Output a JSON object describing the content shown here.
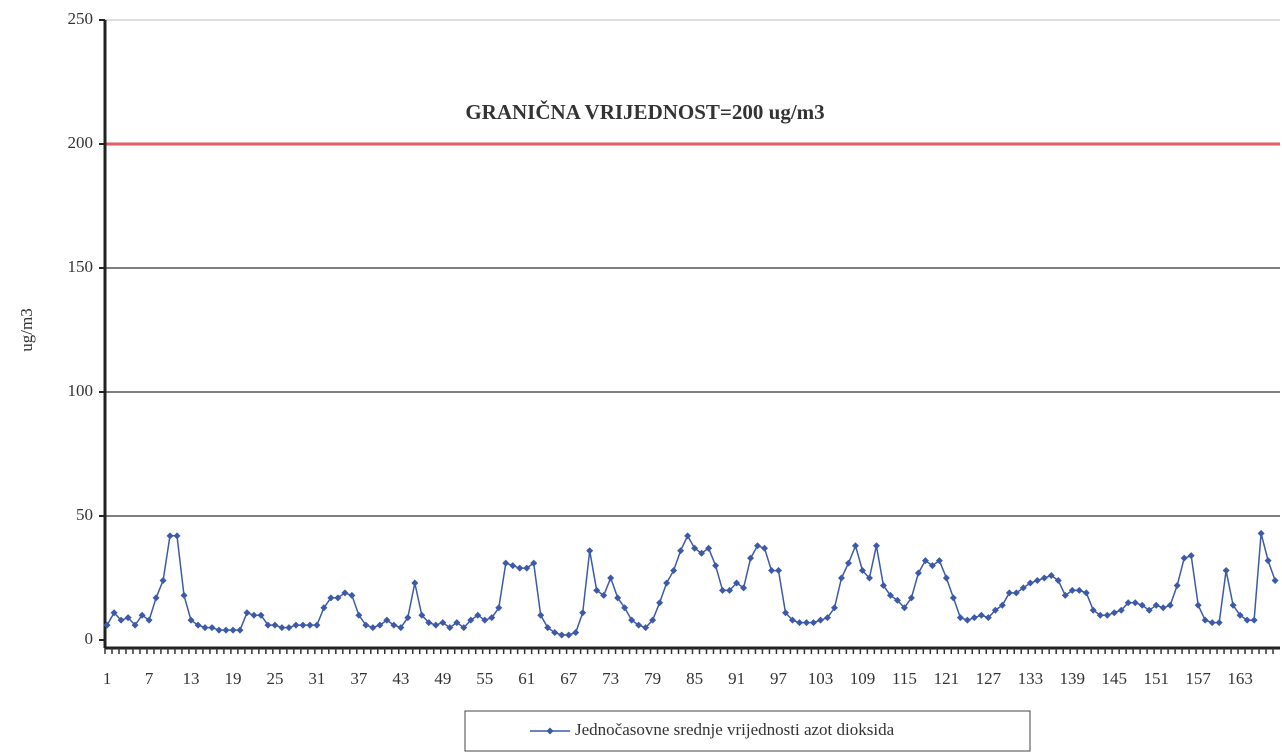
{
  "chart_data": {
    "type": "line",
    "y_label": "ug/m3",
    "categories": [
      1,
      null,
      null,
      null,
      null,
      null,
      7,
      null,
      null,
      null,
      null,
      null,
      13,
      null,
      null,
      null,
      null,
      null,
      19,
      null,
      null,
      null,
      null,
      null,
      25,
      null,
      null,
      null,
      null,
      null,
      31,
      null,
      null,
      null,
      null,
      null,
      37,
      null,
      null,
      null,
      null,
      null,
      43,
      null,
      null,
      null,
      null,
      null,
      49,
      null,
      null,
      null,
      null,
      null,
      55,
      null,
      null,
      null,
      null,
      null,
      61,
      null,
      null,
      null,
      null,
      null,
      67,
      null,
      null,
      null,
      null,
      null,
      73,
      null,
      null,
      null,
      null,
      null,
      79,
      null,
      null,
      null,
      null,
      null,
      85,
      null,
      null,
      null,
      null,
      null,
      91,
      null,
      null,
      null,
      null,
      null,
      97,
      null,
      null,
      null,
      null,
      null,
      103,
      null,
      null,
      null,
      null,
      null,
      109,
      null,
      null,
      null,
      null,
      null,
      115,
      null,
      null,
      null,
      null,
      null,
      121,
      null,
      null,
      null,
      null,
      null,
      127,
      null,
      null,
      null,
      null,
      null,
      133,
      null,
      null,
      null,
      null,
      null,
      139,
      null,
      null,
      null,
      null,
      null,
      145,
      null,
      null,
      null,
      null,
      null,
      151,
      null,
      null,
      null,
      null,
      null,
      157,
      null,
      null,
      null,
      null,
      null,
      163,
      null,
      null,
      null,
      null,
      null
    ],
    "series": [
      {
        "name": "Jednočasovne srednje vrijednosti azot dioksida",
        "color": "#3c5aa8",
        "values": [
          6,
          11,
          8,
          9,
          6,
          10,
          8,
          17,
          24,
          42,
          42,
          18,
          8,
          6,
          5,
          5,
          4,
          4,
          4,
          4,
          11,
          10,
          10,
          6,
          6,
          5,
          5,
          6,
          6,
          6,
          6,
          13,
          17,
          17,
          19,
          18,
          10,
          6,
          5,
          6,
          8,
          6,
          5,
          9,
          23,
          10,
          7,
          6,
          7,
          5,
          7,
          5,
          8,
          10,
          8,
          9,
          13,
          31,
          30,
          29,
          29,
          31,
          10,
          5,
          3,
          2,
          2,
          3,
          11,
          36,
          20,
          18,
          25,
          17,
          13,
          8,
          6,
          5,
          8,
          15,
          23,
          28,
          36,
          42,
          37,
          35,
          37,
          30,
          20,
          20,
          23,
          21,
          33,
          38,
          37,
          28,
          28,
          11,
          8,
          7,
          7,
          7,
          8,
          9,
          13,
          25,
          31,
          38,
          28,
          25,
          38,
          22,
          18,
          16,
          13,
          17,
          27,
          32,
          30,
          32,
          25,
          17,
          9,
          8,
          9,
          10,
          9,
          12,
          14,
          19,
          19,
          21,
          23,
          24,
          25,
          26,
          24,
          18,
          20,
          20,
          19,
          12,
          10,
          10,
          11,
          12,
          15,
          15,
          14,
          12,
          14,
          13,
          14,
          22,
          33,
          34,
          14,
          8,
          7,
          7,
          28,
          14,
          10,
          8,
          8,
          43,
          32,
          24
        ]
      }
    ],
    "threshold": {
      "value": 200,
      "label": "GRANIČNA VRIJEDNOST=200 ug/m3",
      "color": "#ea5a64"
    },
    "ylim": [
      0,
      250
    ],
    "yticks": [
      0,
      50,
      100,
      150,
      200,
      250
    ],
    "grid": true
  }
}
